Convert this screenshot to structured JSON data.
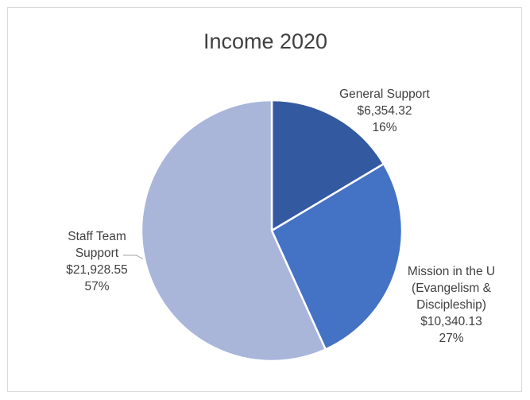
{
  "chart_data": {
    "type": "pie",
    "title": "Income 2020",
    "slices": [
      {
        "category": "General Support",
        "value": 6354.32,
        "value_label": "$6,354.32",
        "percent_label": "16%",
        "color": "#335aa1"
      },
      {
        "category": "Mission in the U (Evangelism & Discipleship)",
        "value": 10340.13,
        "value_label": "$10,340.13",
        "percent_label": "27%",
        "color": "#4472c4"
      },
      {
        "category": "Staff Team Support",
        "value": 21928.55,
        "value_label": "$21,928.55",
        "percent_label": "57%",
        "color": "#a9b6da"
      }
    ],
    "start_angle": "12 o'clock, clockwise",
    "legend": "none",
    "labels": [
      [
        "General Support",
        "$6,354.32",
        "16%"
      ],
      [
        "Mission in the U",
        "(Evangelism &",
        "Discipleship)",
        "$10,340.13",
        "27%"
      ],
      [
        "Staff Team",
        "Support",
        "$21,928.55",
        "57%"
      ]
    ]
  }
}
